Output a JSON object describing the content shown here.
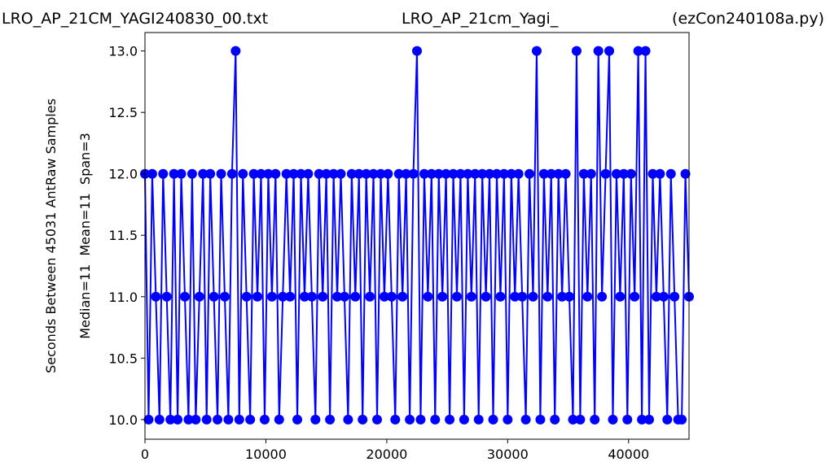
{
  "chart_data": {
    "type": "line",
    "titles": [
      "LRO_AP_21CM_YAGI240830_00.txt",
      "LRO_AP_21cm_Yagi_",
      "(ezCon240108a.py)"
    ],
    "ylabel": [
      "Seconds Between 45031 AntRaw Samples",
      "Median=11  Mean=11  Span=3"
    ],
    "color": "#0000ff",
    "markers": true,
    "x": [
      0,
      300,
      600,
      900,
      1200,
      1500,
      1800,
      2100,
      2400,
      2700,
      3000,
      3300,
      3600,
      3900,
      4200,
      4500,
      4800,
      5100,
      5400,
      5700,
      6000,
      6300,
      6600,
      6900,
      7200,
      7500,
      7800,
      8100,
      8400,
      8700,
      9000,
      9300,
      9600,
      9900,
      10200,
      10500,
      10800,
      11100,
      11400,
      11700,
      12000,
      12300,
      12600,
      12900,
      13200,
      13500,
      13800,
      14100,
      14400,
      14700,
      15000,
      15300,
      15600,
      15900,
      16200,
      16500,
      16800,
      17100,
      17400,
      17700,
      18000,
      18300,
      18600,
      18900,
      19200,
      19500,
      19800,
      20100,
      20400,
      20700,
      21000,
      21300,
      21600,
      21900,
      22200,
      22500,
      22800,
      23100,
      23400,
      23700,
      24000,
      24300,
      24600,
      24900,
      25200,
      25500,
      25800,
      26100,
      26400,
      26700,
      27000,
      27300,
      27600,
      27900,
      28200,
      28500,
      28800,
      29100,
      29400,
      29700,
      30000,
      30300,
      30600,
      30900,
      31200,
      31500,
      31800,
      32100,
      32400,
      32700,
      33000,
      33300,
      33600,
      33900,
      34200,
      34500,
      34800,
      35100,
      35400,
      35700,
      36000,
      36300,
      36600,
      36900,
      37200,
      37500,
      37800,
      38100,
      38400,
      38700,
      39000,
      39300,
      39600,
      39900,
      40200,
      40500,
      40800,
      41100,
      41400,
      41700,
      42000,
      42300,
      42600,
      42900,
      43200,
      43500,
      43800,
      44100,
      44400,
      44700,
      45000
    ],
    "values": [
      12,
      10,
      12,
      11,
      10,
      12,
      11,
      10,
      12,
      10,
      12,
      11,
      10,
      12,
      10,
      11,
      12,
      10,
      12,
      11,
      10,
      12,
      11,
      10,
      12,
      13,
      10,
      12,
      11,
      10,
      12,
      11,
      12,
      10,
      12,
      11,
      12,
      10,
      11,
      12,
      11,
      12,
      10,
      12,
      11,
      12,
      11,
      10,
      12,
      11,
      12,
      10,
      12,
      11,
      12,
      11,
      10,
      12,
      11,
      12,
      10,
      12,
      11,
      12,
      10,
      12,
      11,
      12,
      11,
      10,
      12,
      11,
      12,
      10,
      12,
      13,
      10,
      12,
      11,
      12,
      10,
      12,
      11,
      12,
      10,
      12,
      11,
      12,
      10,
      12,
      11,
      12,
      10,
      12,
      11,
      12,
      10,
      12,
      11,
      12,
      10,
      12,
      11,
      12,
      11,
      10,
      12,
      11,
      13,
      10,
      12,
      11,
      12,
      10,
      12,
      11,
      12,
      11,
      10,
      13,
      10,
      12,
      11,
      12,
      10,
      13,
      11,
      12,
      13,
      10,
      12,
      11,
      12,
      10,
      12,
      11,
      13,
      10,
      13,
      10,
      12,
      11,
      12,
      11,
      10,
      12,
      11,
      10,
      10,
      12,
      11
    ],
    "xlim": [
      0,
      45000
    ],
    "xticks": [
      0,
      10000,
      20000,
      30000,
      40000
    ],
    "ylim": [
      9.84,
      13.15
    ],
    "yticks": [
      {
        "value": 10,
        "label": "10.0"
      },
      10.5,
      {
        "value": 11,
        "label": "11.0"
      },
      11.5,
      {
        "value": 12,
        "label": "12.0"
      },
      12.5,
      {
        "value": 13,
        "label": "13.0"
      }
    ]
  }
}
